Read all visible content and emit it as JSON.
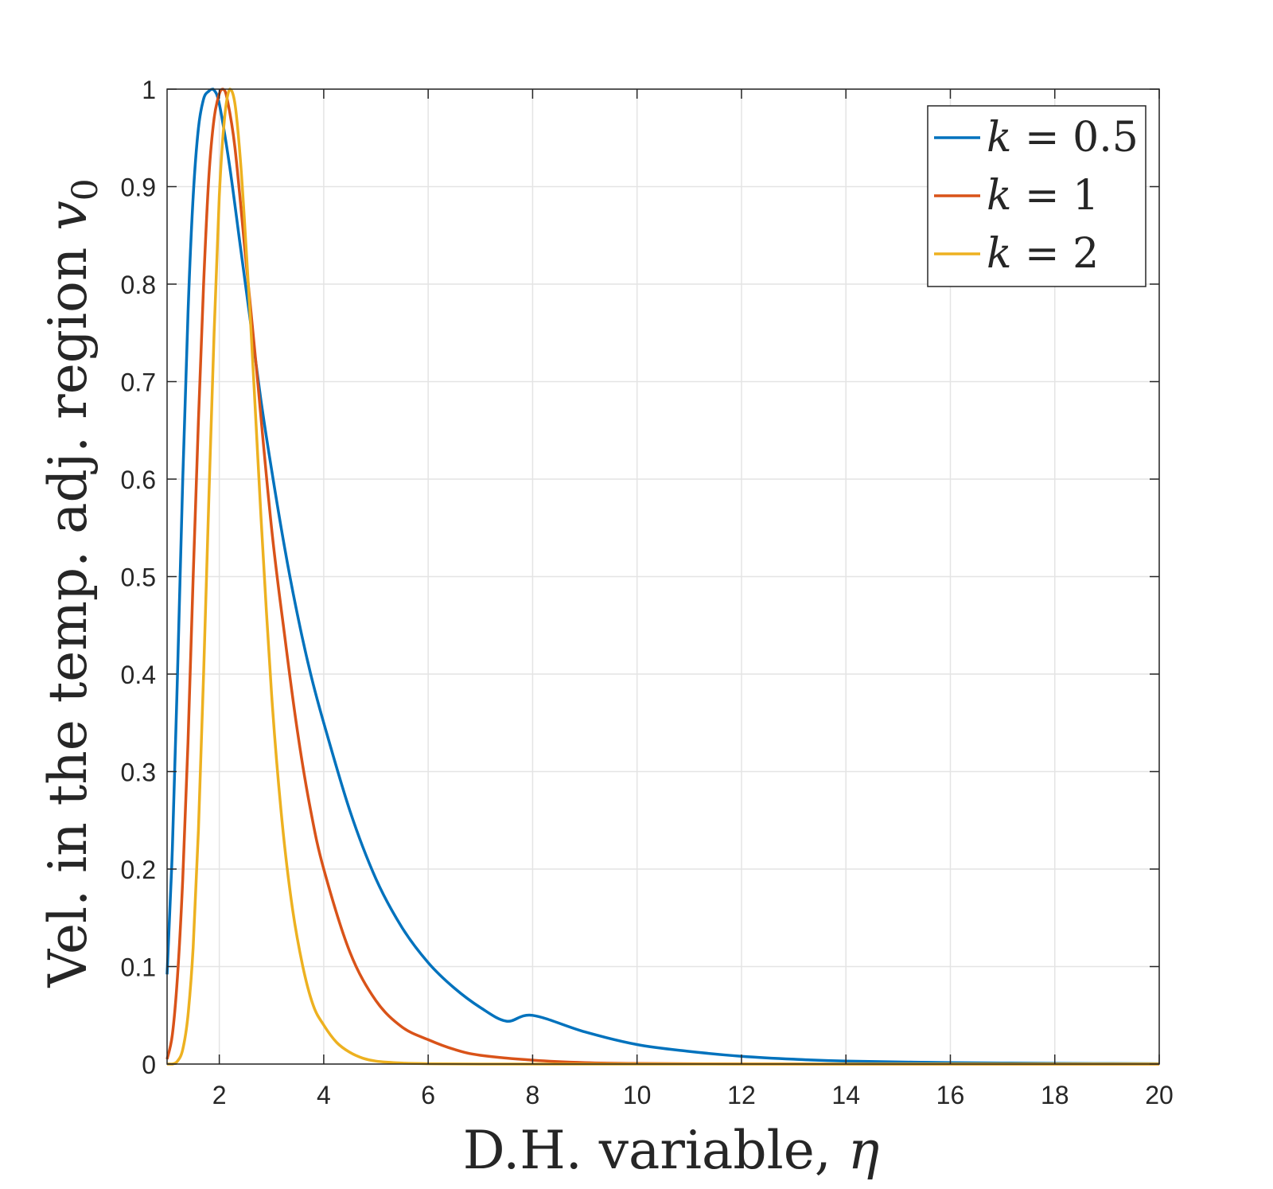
{
  "chart_data": {
    "type": "line",
    "xlabel_prefix": "D.H. variable, ",
    "xlabel_symbol": "η",
    "ylabel_prefix": "Vel. in the temp. adj. region ",
    "ylabel_symbol": "v",
    "ylabel_subscript": "0",
    "xlim": [
      1,
      20
    ],
    "ylim": [
      0,
      1
    ],
    "xticks": [
      2,
      4,
      6,
      8,
      10,
      12,
      14,
      16,
      18,
      20
    ],
    "yticks": [
      0,
      0.1,
      0.2,
      0.3,
      0.4,
      0.5,
      0.6,
      0.7,
      0.8,
      0.9,
      1
    ],
    "xtick_labels": [
      "2",
      "4",
      "6",
      "8",
      "10",
      "12",
      "14",
      "16",
      "18",
      "20"
    ],
    "ytick_labels": [
      "0",
      "0.1",
      "0.2",
      "0.3",
      "0.4",
      "0.5",
      "0.6",
      "0.7",
      "0.8",
      "0.9",
      "1"
    ],
    "grid": true,
    "legend_position": "top-right",
    "series": [
      {
        "name": "k = 0.5",
        "legend_lhs": "k",
        "legend_rhs": "0.5",
        "color": "#0072BD",
        "x": [
          1.0,
          1.1,
          1.2,
          1.3,
          1.4,
          1.5,
          1.6,
          1.7,
          1.8,
          1.88,
          2.0,
          2.2,
          2.4,
          2.6,
          2.8,
          3.0,
          3.25,
          3.5,
          3.75,
          4.0,
          4.5,
          5.0,
          5.5,
          6.0,
          6.5,
          7.0,
          7.5,
          8.0,
          9.0,
          10.0,
          11.0,
          12.0,
          13.0,
          14.0,
          16.0,
          18.0,
          20.0
        ],
        "y": [
          0.092,
          0.22,
          0.4,
          0.6,
          0.77,
          0.89,
          0.96,
          0.99,
          0.998,
          1.0,
          0.985,
          0.92,
          0.84,
          0.76,
          0.68,
          0.61,
          0.53,
          0.46,
          0.4,
          0.35,
          0.26,
          0.19,
          0.14,
          0.104,
          0.078,
          0.058,
          0.044,
          0.05,
          0.033,
          0.02,
          0.013,
          0.008,
          0.005,
          0.003,
          0.0015,
          0.0007,
          0.0003
        ]
      },
      {
        "name": "k = 1",
        "legend_lhs": "k",
        "legend_rhs": "1",
        "color": "#D95319",
        "x": [
          1.0,
          1.1,
          1.2,
          1.3,
          1.4,
          1.5,
          1.6,
          1.7,
          1.8,
          1.9,
          2.0,
          2.07,
          2.15,
          2.3,
          2.5,
          2.7,
          3.0,
          3.25,
          3.5,
          3.75,
          4.0,
          4.5,
          5.0,
          5.5,
          6.0,
          6.5,
          7.0,
          8.0,
          9.0,
          10.0,
          12.0,
          14.0,
          16.0,
          18.0,
          20.0
        ],
        "y": [
          0.005,
          0.03,
          0.09,
          0.19,
          0.33,
          0.5,
          0.66,
          0.8,
          0.91,
          0.97,
          0.995,
          1.0,
          0.99,
          0.94,
          0.83,
          0.72,
          0.55,
          0.44,
          0.34,
          0.26,
          0.2,
          0.115,
          0.065,
          0.038,
          0.025,
          0.015,
          0.009,
          0.004,
          0.0015,
          0.0006,
          0.0001,
          0.0,
          0.0,
          0.0,
          0.0
        ]
      },
      {
        "name": "k = 2",
        "legend_lhs": "k",
        "legend_rhs": "2",
        "color": "#EDB120",
        "x": [
          1.0,
          1.1,
          1.2,
          1.3,
          1.4,
          1.5,
          1.6,
          1.7,
          1.8,
          1.9,
          2.0,
          2.1,
          2.2,
          2.3,
          2.4,
          2.5,
          2.6,
          2.7,
          2.8,
          3.0,
          3.2,
          3.4,
          3.6,
          3.8,
          4.0,
          4.25,
          4.5,
          4.75,
          5.0,
          5.5,
          6.0,
          7.0,
          8.0,
          10.0,
          14.0,
          20.0
        ],
        "y": [
          0.0,
          0.0,
          0.003,
          0.015,
          0.05,
          0.12,
          0.24,
          0.4,
          0.58,
          0.75,
          0.89,
          0.97,
          1.0,
          0.985,
          0.93,
          0.85,
          0.76,
          0.66,
          0.56,
          0.38,
          0.25,
          0.16,
          0.1,
          0.06,
          0.04,
          0.022,
          0.012,
          0.006,
          0.003,
          0.001,
          0.0003,
          0.0,
          0.0,
          0.0,
          0.0,
          0.0
        ]
      }
    ]
  }
}
